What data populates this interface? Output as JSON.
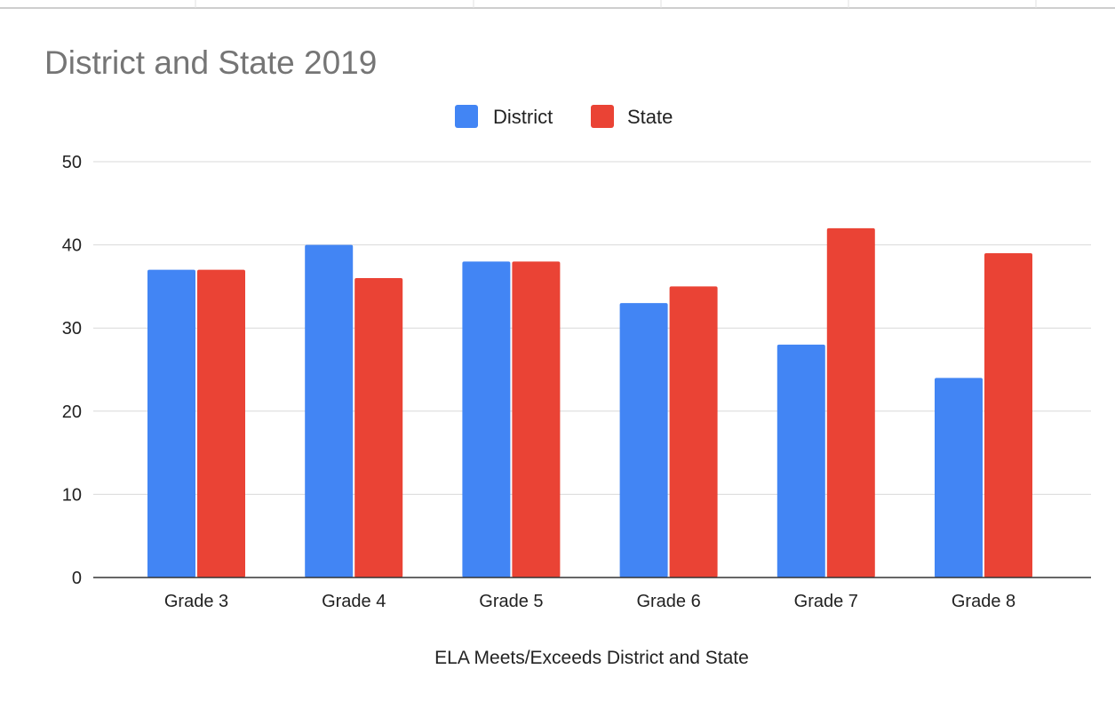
{
  "chart_data": {
    "type": "bar",
    "title": "District and State 2019",
    "xlabel": "ELA Meets/Exceeds District and State",
    "ylabel": "",
    "categories": [
      "Grade 3",
      "Grade 4",
      "Grade 5",
      "Grade 6",
      "Grade 7",
      "Grade 8"
    ],
    "series": [
      {
        "name": "District",
        "color": "#4285f4",
        "values": [
          37,
          40,
          38,
          33,
          28,
          24
        ]
      },
      {
        "name": "State",
        "color": "#ea4335",
        "values": [
          37,
          36,
          38,
          35,
          42,
          39
        ]
      }
    ],
    "ylim": [
      0,
      50
    ],
    "yticks": [
      "0",
      "10",
      "20",
      "30",
      "40",
      "50"
    ],
    "grid": true,
    "legend": "top-center"
  }
}
